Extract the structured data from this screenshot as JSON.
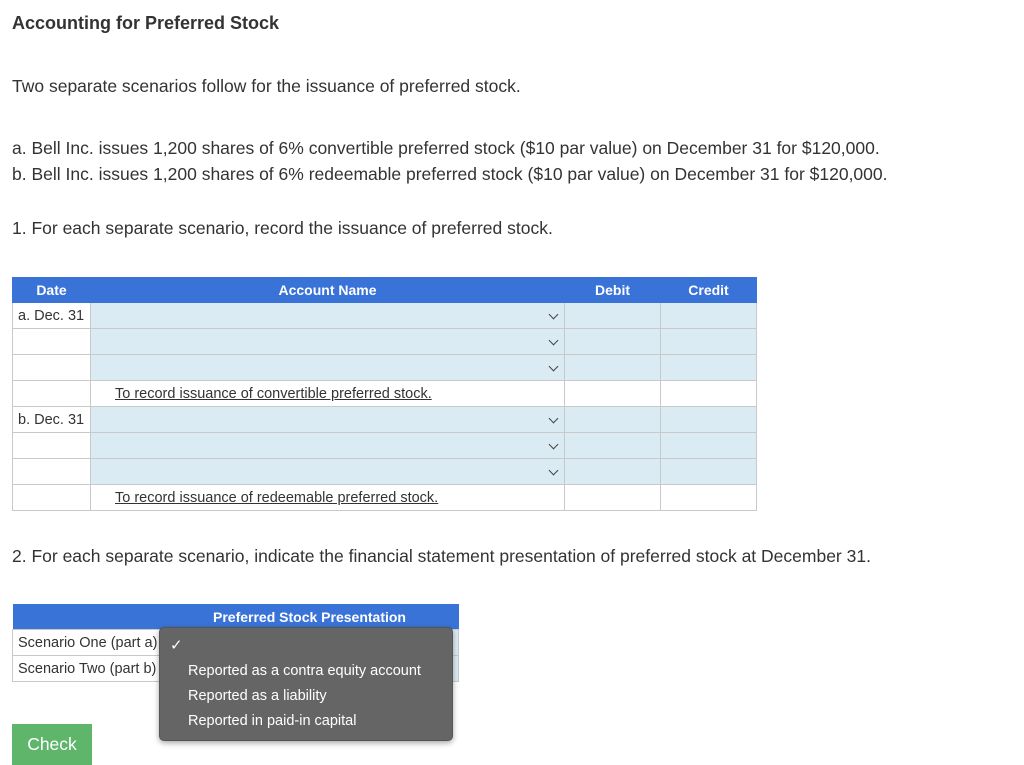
{
  "title": "Accounting for Preferred Stock",
  "intro": "Two separate scenarios follow for the issuance of preferred stock.",
  "scenarios": [
    "a. Bell Inc. issues 1,200 shares of 6% convertible preferred stock ($10 par value) on December 31 for $120,000.",
    "b. Bell Inc. issues 1,200 shares of 6% redeemable preferred stock ($10 par value) on December 31 for $120,000."
  ],
  "q1": "1. For each separate scenario, record the issuance of preferred stock.",
  "journal": {
    "headers": {
      "date": "Date",
      "account": "Account Name",
      "debit": "Debit",
      "credit": "Credit"
    },
    "entry_a": {
      "date": "a. Dec. 31",
      "memo": "To record issuance of convertible preferred stock."
    },
    "entry_b": {
      "date": "b. Dec. 31",
      "memo": "To record issuance of redeemable preferred stock."
    }
  },
  "q2": "2. For each separate scenario, indicate the financial statement presentation of preferred stock at December 31.",
  "presentation": {
    "header": "Preferred Stock Presentation",
    "rows": [
      "Scenario One (part a)",
      "Scenario Two (part b)"
    ]
  },
  "dropdown": {
    "checkmark": "✓",
    "options": [
      "Reported as a contra equity account",
      "Reported as a liability",
      "Reported in paid-in capital"
    ]
  },
  "check_button": "Check",
  "colors": {
    "header_blue": "#3a73d8",
    "input_blue": "#daebf4",
    "check_green": "#5fb56a",
    "dropdown_gray": "#656565"
  }
}
